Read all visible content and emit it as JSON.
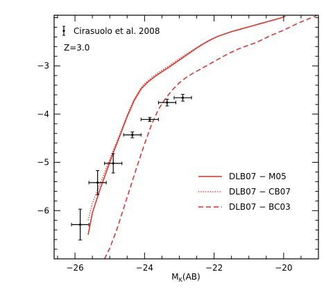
{
  "chart_data": {
    "type": "line",
    "title": "",
    "xlabel": "M",
    "xlabel_sub": "K",
    "xlabel_suffix": "(AB)",
    "ylabel": "",
    "xlim": [
      -26.6,
      -19.0
    ],
    "ylim": [
      -7.0,
      -1.95
    ],
    "x_ticks": [
      -26,
      -24,
      -22,
      -20
    ],
    "x_tick_labels": [
      "−26",
      "−24",
      "−22",
      "−20"
    ],
    "y_ticks": [
      -6,
      -5,
      -4,
      -3
    ],
    "y_tick_labels": [
      "−6",
      "−5",
      "−4",
      "−3"
    ],
    "grid": false,
    "annotation": "Z=3.0",
    "observed": {
      "name": "Cirasuolo et al. 2008",
      "color": "#000000",
      "points": [
        {
          "x": -25.85,
          "y": -6.29,
          "xerr": 0.25,
          "yerr": 0.32
        },
        {
          "x": -25.35,
          "y": -5.42,
          "xerr": 0.25,
          "yerr": 0.25
        },
        {
          "x": -24.9,
          "y": -5.02,
          "xerr": 0.25,
          "yerr": 0.2
        },
        {
          "x": -24.35,
          "y": -4.43,
          "xerr": 0.25,
          "yerr": 0.06
        },
        {
          "x": -23.85,
          "y": -4.11,
          "xerr": 0.25,
          "yerr": 0.04
        },
        {
          "x": -23.35,
          "y": -3.76,
          "xerr": 0.25,
          "yerr": 0.07
        },
        {
          "x": -22.9,
          "y": -3.66,
          "xerr": 0.25,
          "yerr": 0.07
        }
      ]
    },
    "series": [
      {
        "name": "DLB07 − M05",
        "color": "#e8281e",
        "dash": "solid",
        "x": [
          -25.62,
          -25.5,
          -25.3,
          -25.1,
          -24.9,
          -24.7,
          -24.5,
          -24.3,
          -24.1,
          -23.9,
          -23.7,
          -23.5,
          -23.3,
          -23.1,
          -22.9,
          -22.7,
          -22.5,
          -22.3,
          -22.1,
          -21.9,
          -21.7,
          -21.5,
          -21.3,
          -21.1,
          -20.9,
          -20.7,
          -20.5,
          -20.3,
          -20.1,
          -19.95
        ],
        "y": [
          -6.5,
          -6.05,
          -5.6,
          -5.2,
          -4.8,
          -4.43,
          -4.05,
          -3.72,
          -3.48,
          -3.33,
          -3.22,
          -3.12,
          -3.03,
          -2.93,
          -2.83,
          -2.73,
          -2.63,
          -2.54,
          -2.46,
          -2.39,
          -2.34,
          -2.29,
          -2.25,
          -2.21,
          -2.17,
          -2.13,
          -2.09,
          -2.05,
          -2.01,
          -1.97
        ]
      },
      {
        "name": "DLB07 − CB07",
        "color": "#e8281e",
        "dash": "dotted",
        "x": [
          -25.62,
          -25.5,
          -25.3,
          -25.1,
          -24.9,
          -24.7,
          -24.5,
          -24.3,
          -24.1,
          -23.9,
          -23.7,
          -23.5,
          -23.3,
          -23.1,
          -22.9,
          -22.7,
          -22.5,
          -22.3,
          -22.1,
          -21.9,
          -21.7,
          -21.5,
          -21.3,
          -21.1,
          -20.9,
          -20.7,
          -20.5,
          -20.3,
          -20.1,
          -19.95
        ],
        "y": [
          -6.2,
          -5.85,
          -5.48,
          -5.12,
          -4.75,
          -4.39,
          -4.02,
          -3.69,
          -3.45,
          -3.3,
          -3.19,
          -3.09,
          -3.0,
          -2.9,
          -2.8,
          -2.71,
          -2.62,
          -2.53,
          -2.45,
          -2.39,
          -2.34,
          -2.29,
          -2.25,
          -2.21,
          -2.17,
          -2.13,
          -2.09,
          -2.05,
          -2.01,
          -1.97
        ]
      },
      {
        "name": "DLB07 − BC03",
        "color": "#e8281e",
        "dash": "dashed",
        "x": [
          -25.15,
          -25.0,
          -24.8,
          -24.6,
          -24.4,
          -24.2,
          -24.0,
          -23.8,
          -23.6,
          -23.4,
          -23.2,
          -23.0,
          -22.8,
          -22.6,
          -22.4,
          -22.2,
          -22.0,
          -21.8,
          -21.6,
          -21.4,
          -21.2,
          -21.0,
          -20.8,
          -20.6,
          -20.4,
          -20.2,
          -20.0,
          -19.8,
          -19.6,
          -19.4,
          -19.2,
          -19.05
        ],
        "y": [
          -7.0,
          -6.78,
          -6.4,
          -5.95,
          -5.5,
          -5.05,
          -4.62,
          -4.22,
          -3.9,
          -3.68,
          -3.5,
          -3.35,
          -3.24,
          -3.15,
          -3.07,
          -2.99,
          -2.91,
          -2.83,
          -2.75,
          -2.68,
          -2.62,
          -2.57,
          -2.52,
          -2.45,
          -2.38,
          -2.32,
          -2.26,
          -2.19,
          -2.12,
          -2.06,
          -2.0,
          -1.96
        ]
      }
    ],
    "legend": {
      "placement": "bottom-right",
      "entries": [
        "DLB07 − M05",
        "DLB07 − CB07",
        "DLB07 − BC03"
      ]
    }
  }
}
